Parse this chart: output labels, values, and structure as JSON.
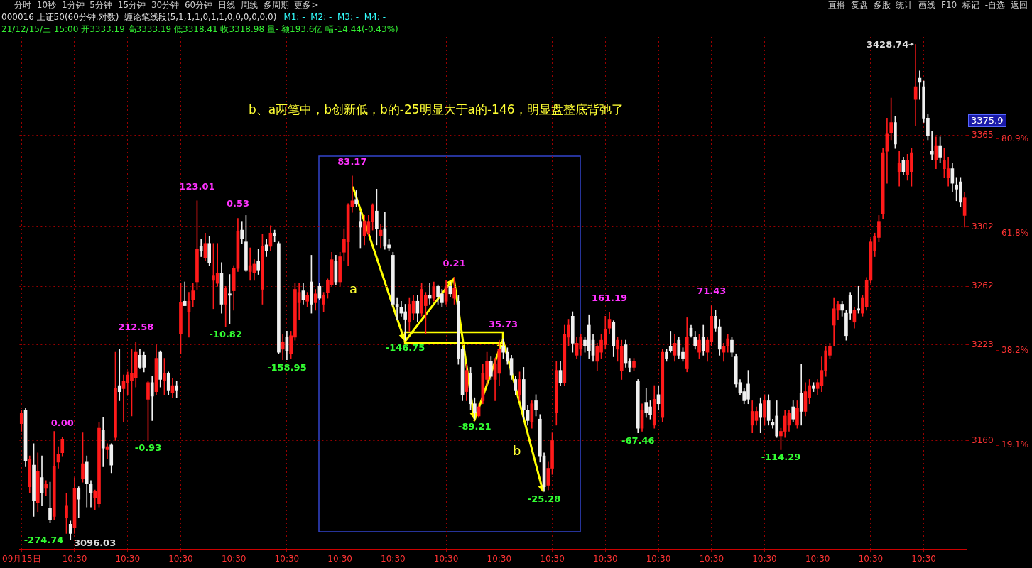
{
  "chart_data": {
    "type": "candlestick",
    "title": "000016 上证50(60分钟.对数)",
    "subtitle": "21/12/15/三 15:00 开3333.19 高3333.19 低3318.41 收3318.98 量- 额193.6亿 幅-14.44(-0.43%)",
    "categories": [
      "09月15日",
      null,
      null,
      null,
      null,
      null,
      null,
      null,
      null,
      null,
      null,
      null,
      null,
      "10:30",
      null,
      null,
      null,
      null,
      null,
      null,
      null,
      null,
      null,
      null,
      null,
      null,
      "10:30",
      null,
      null,
      null,
      null,
      null,
      null,
      null,
      null,
      null,
      null,
      null,
      null,
      "10:30",
      null,
      null,
      null,
      null,
      null,
      null,
      null,
      null,
      null,
      null,
      null,
      null,
      "10:30",
      null,
      null,
      null,
      null,
      null,
      null,
      null,
      null,
      null,
      null,
      null,
      null,
      "10:30",
      null,
      null,
      null,
      null,
      null,
      null,
      null,
      null,
      null,
      null,
      null,
      null,
      "10:30",
      null,
      null,
      null,
      null,
      null,
      null,
      null,
      null,
      null,
      null,
      null,
      null,
      "10:30",
      null,
      null,
      null,
      null,
      null,
      null,
      null,
      null,
      null,
      null,
      null,
      null,
      "10:30",
      null,
      null,
      null,
      null,
      null,
      null,
      null,
      null,
      null,
      null,
      null,
      null,
      "10:30",
      null,
      null,
      null,
      null,
      null,
      null,
      null,
      null,
      null,
      null,
      null,
      null,
      "10:30",
      null,
      null,
      null,
      null,
      null,
      null,
      null,
      null,
      null,
      null,
      null,
      null,
      "10:30",
      null,
      null,
      null,
      null,
      null,
      null,
      null,
      null,
      null,
      null,
      null,
      null,
      "10:30",
      null,
      null,
      null,
      null,
      null,
      null,
      null,
      null,
      null,
      null,
      null,
      null,
      "10:30",
      null,
      null,
      null,
      null,
      null,
      null,
      null,
      null,
      null,
      null,
      null,
      null,
      "10:30",
      null,
      null,
      null,
      null,
      null,
      null,
      null,
      null,
      null,
      null,
      null,
      null,
      "10:30",
      null,
      null,
      null,
      null,
      null,
      null,
      null,
      null,
      null,
      null,
      null,
      null,
      "10:30",
      null,
      null,
      null,
      null,
      null,
      null,
      null,
      null,
      null,
      null,
      null,
      null,
      "10:30",
      null,
      null,
      null,
      null,
      null,
      null,
      null,
      null,
      null,
      null
    ],
    "ohlc": [
      [
        3171,
        3180,
        3166,
        3178
      ],
      [
        3180,
        3181,
        3143,
        3147
      ],
      [
        3130,
        3150,
        3126,
        3148
      ],
      [
        3144,
        3158,
        3111,
        3121
      ],
      [
        3120,
        3152,
        3114,
        3140
      ],
      [
        3136,
        3150,
        3118,
        3126
      ],
      [
        3129,
        3134,
        3124,
        3132
      ],
      [
        3116,
        3133,
        3107,
        3109
      ],
      [
        3111,
        3166,
        3109,
        3143
      ],
      [
        3146,
        3156,
        3142,
        3151
      ],
      [
        3152,
        3162,
        3150,
        3161
      ],
      [
        3110,
        3126,
        3100,
        3118
      ],
      [
        3106,
        3108,
        3096.03,
        3100
      ],
      [
        3104,
        3136,
        3100,
        3129
      ],
      [
        3129,
        3130,
        3110,
        3122
      ],
      [
        3135,
        3165,
        3133,
        3145
      ],
      [
        3146,
        3150,
        3117,
        3132
      ],
      [
        3132,
        3134,
        3117,
        3126
      ],
      [
        3123,
        3128,
        3115,
        3127
      ],
      [
        3119,
        3172,
        3117,
        3168
      ],
      [
        3167,
        3175,
        3143,
        3155
      ],
      [
        3154,
        3158,
        3148,
        3156
      ],
      [
        3157,
        3158,
        3139,
        3144
      ],
      [
        3162,
        3218,
        3160,
        3194
      ],
      [
        3196,
        3220,
        3186,
        3192
      ],
      [
        3194,
        3203,
        3172,
        3199
      ],
      [
        3198,
        3205,
        3190,
        3203
      ],
      [
        3199,
        3220,
        3176,
        3204
      ],
      [
        3201,
        3225,
        3195,
        3218
      ],
      [
        3216,
        3220,
        3207,
        3208
      ],
      [
        3216,
        3218,
        3205,
        3208
      ],
      [
        3187,
        3199,
        3160,
        3198
      ],
      [
        3198,
        3202,
        3173,
        3189
      ],
      [
        3192,
        3223,
        3190,
        3214
      ],
      [
        3218,
        3219,
        3195,
        3200
      ],
      [
        3199,
        3214,
        3190,
        3204
      ],
      [
        3204,
        3205,
        3190,
        3193
      ],
      [
        3191,
        3201,
        3188,
        3196
      ],
      [
        3196,
        3199,
        3188,
        3193
      ],
      [
        3230,
        3264,
        3217,
        3251
      ],
      [
        3252,
        3265,
        3249,
        3249
      ],
      [
        3245,
        3258,
        3228,
        3252
      ],
      [
        3253,
        3264,
        3248,
        3259
      ],
      [
        3265,
        3320,
        3260,
        3287
      ],
      [
        3289,
        3294,
        3282,
        3286
      ],
      [
        3281,
        3298,
        3279,
        3291
      ],
      [
        3291,
        3296,
        3276,
        3278
      ],
      [
        3266,
        3291,
        3247,
        3269
      ],
      [
        3264,
        3291,
        3262,
        3271
      ],
      [
        3271,
        3278,
        3244,
        3250
      ],
      [
        3250,
        3262,
        3235,
        3261
      ],
      [
        3257,
        3270,
        3237,
        3256
      ],
      [
        3259,
        3276,
        3246,
        3274
      ],
      [
        3274,
        3308,
        3272,
        3299
      ],
      [
        3300,
        3306,
        3291,
        3294
      ],
      [
        3292,
        3310,
        3272,
        3273
      ],
      [
        3272,
        3288,
        3266,
        3276
      ],
      [
        3271,
        3280,
        3266,
        3277
      ],
      [
        3279,
        3287,
        3270,
        3273
      ],
      [
        3260,
        3297,
        3250,
        3289
      ],
      [
        3290,
        3294,
        3282,
        3286
      ],
      [
        3289,
        3303,
        3286,
        3298
      ],
      [
        3298,
        3300,
        3292,
        3296
      ],
      [
        3291,
        3292,
        3217,
        3218
      ],
      [
        3220,
        3230,
        3213,
        3225
      ],
      [
        3228,
        3232,
        3213,
        3219
      ],
      [
        3217,
        3232,
        3214,
        3229
      ],
      [
        3228,
        3264,
        3226,
        3260
      ],
      [
        3251,
        3264,
        3240,
        3258
      ],
      [
        3259,
        3264,
        3250,
        3253
      ],
      [
        3252,
        3258,
        3248,
        3256
      ],
      [
        3265,
        3283,
        3244,
        3250
      ],
      [
        3251,
        3260,
        3246,
        3257
      ],
      [
        3262,
        3264,
        3253,
        3254
      ],
      [
        3250,
        3258,
        3245,
        3256
      ],
      [
        3258,
        3267,
        3254,
        3266
      ],
      [
        3263,
        3285,
        3262,
        3280
      ],
      [
        3279,
        3283,
        3263,
        3265
      ],
      [
        3265,
        3285,
        3262,
        3282
      ],
      [
        3285,
        3301,
        3279,
        3294
      ],
      [
        3292,
        3318,
        3276,
        3317
      ],
      [
        3316,
        3337,
        3312,
        3320
      ],
      [
        3321,
        3327,
        3316,
        3318
      ],
      [
        3306,
        3312,
        3288,
        3302
      ],
      [
        3296,
        3310,
        3290,
        3306
      ],
      [
        3298,
        3310,
        3296,
        3306
      ],
      [
        3306,
        3318,
        3300,
        3317
      ],
      [
        3313,
        3328,
        3290,
        3301
      ],
      [
        3296,
        3304,
        3288,
        3300
      ],
      [
        3301,
        3312,
        3287,
        3289
      ],
      [
        3290,
        3294,
        3286,
        3288
      ],
      [
        3283,
        3285,
        3248,
        3250
      ],
      [
        3250,
        3254,
        3240,
        3248
      ],
      [
        3248,
        3252,
        3242,
        3244
      ],
      [
        3245,
        3250,
        3226,
        3240
      ],
      [
        3238,
        3254,
        3232,
        3250
      ],
      [
        3244,
        3256,
        3240,
        3252
      ],
      [
        3252,
        3256,
        3238,
        3244
      ],
      [
        3244,
        3264,
        3242,
        3260
      ],
      [
        3249,
        3258,
        3230,
        3256
      ],
      [
        3256,
        3264,
        3250,
        3254
      ],
      [
        3254,
        3265,
        3252,
        3262
      ],
      [
        3262,
        3263,
        3250,
        3255
      ],
      [
        3257,
        3260,
        3248,
        3251
      ],
      [
        3252,
        3266,
        3250,
        3262
      ],
      [
        3262,
        3265,
        3255,
        3257
      ],
      [
        3254,
        3268,
        3250,
        3261
      ],
      [
        3252,
        3256,
        3210,
        3214
      ],
      [
        3220,
        3222,
        3186,
        3190
      ],
      [
        3192,
        3210,
        3186,
        3206
      ],
      [
        3204,
        3208,
        3180,
        3184
      ],
      [
        3184,
        3188,
        3174,
        3178
      ],
      [
        3176,
        3184,
        3175,
        3182
      ],
      [
        3186,
        3210,
        3184,
        3204
      ],
      [
        3200,
        3218,
        3196,
        3212
      ],
      [
        3212,
        3215,
        3200,
        3202
      ],
      [
        3200,
        3214,
        3186,
        3210
      ],
      [
        3204,
        3226,
        3196,
        3220
      ],
      [
        3222,
        3227,
        3214,
        3218
      ],
      [
        3218,
        3221,
        3210,
        3212
      ],
      [
        3214,
        3216,
        3200,
        3203
      ],
      [
        3200,
        3202,
        3190,
        3193
      ],
      [
        3190,
        3205,
        3186,
        3200
      ],
      [
        3200,
        3208,
        3174,
        3180
      ],
      [
        3180,
        3183,
        3170,
        3173
      ],
      [
        3172,
        3186,
        3168,
        3184
      ],
      [
        3186,
        3190,
        3176,
        3180
      ],
      [
        3174,
        3177,
        3146,
        3150
      ],
      [
        3150,
        3152,
        3127,
        3130
      ],
      [
        3131,
        3146,
        3128,
        3142
      ],
      [
        3142,
        3165,
        3138,
        3160
      ],
      [
        3178,
        3212,
        3170,
        3206
      ],
      [
        3206,
        3212,
        3196,
        3198
      ],
      [
        3198,
        3236,
        3196,
        3230
      ],
      [
        3228,
        3240,
        3222,
        3236
      ],
      [
        3242,
        3245,
        3218,
        3224
      ],
      [
        3216,
        3228,
        3214,
        3224
      ],
      [
        3220,
        3230,
        3216,
        3228
      ],
      [
        3226,
        3228,
        3218,
        3222
      ],
      [
        3236,
        3243,
        3214,
        3219
      ],
      [
        3226,
        3230,
        3212,
        3216
      ],
      [
        3212,
        3224,
        3206,
        3222
      ],
      [
        3218,
        3230,
        3214,
        3226
      ],
      [
        3223,
        3242,
        3220,
        3233
      ],
      [
        3234,
        3244.5,
        3230,
        3240
      ],
      [
        3238,
        3239,
        3215,
        3222
      ],
      [
        3220,
        3228,
        3212,
        3226
      ],
      [
        3206,
        3226,
        3200,
        3222
      ],
      [
        3223,
        3226,
        3208,
        3211
      ],
      [
        3212,
        3214,
        3205,
        3208
      ],
      [
        3208,
        3214,
        3206,
        3212
      ],
      [
        3199,
        3200,
        3165,
        3168
      ],
      [
        3168,
        3184,
        3166,
        3180
      ],
      [
        3185,
        3194,
        3175,
        3178
      ],
      [
        3182,
        3186,
        3174,
        3177
      ],
      [
        3170,
        3196,
        3168,
        3187
      ],
      [
        3190,
        3196,
        3180,
        3184
      ],
      [
        3175,
        3220,
        3172,
        3218
      ],
      [
        3218,
        3220,
        3212,
        3214
      ],
      [
        3222,
        3232,
        3218,
        3219
      ],
      [
        3216,
        3230,
        3212,
        3224
      ],
      [
        3226,
        3228,
        3214,
        3216
      ],
      [
        3218,
        3221,
        3212,
        3214
      ],
      [
        3207,
        3241,
        3205,
        3228
      ],
      [
        3234,
        3236,
        3228,
        3229
      ],
      [
        3228,
        3232,
        3220,
        3222
      ],
      [
        3218,
        3230,
        3214,
        3226
      ],
      [
        3228,
        3236,
        3216,
        3219
      ],
      [
        3218,
        3228,
        3212,
        3226
      ],
      [
        3225,
        3249,
        3222,
        3242
      ],
      [
        3242,
        3246,
        3232,
        3234
      ],
      [
        3235,
        3240,
        3216,
        3220
      ],
      [
        3218,
        3224,
        3212,
        3222
      ],
      [
        3222,
        3230,
        3218,
        3227
      ],
      [
        3226,
        3228,
        3215,
        3218
      ],
      [
        3215,
        3217,
        3195,
        3197
      ],
      [
        3198,
        3200,
        3190,
        3191
      ],
      [
        3192,
        3194,
        3184,
        3186
      ],
      [
        3197,
        3206,
        3184,
        3187
      ],
      [
        3170,
        3186,
        3165,
        3179
      ],
      [
        3173,
        3182,
        3170,
        3179
      ],
      [
        3184,
        3188,
        3165,
        3175
      ],
      [
        3175,
        3190,
        3170,
        3186
      ],
      [
        3186,
        3190,
        3170,
        3173
      ],
      [
        3172,
        3174,
        3168,
        3170
      ],
      [
        3176,
        3186,
        3162,
        3163
      ],
      [
        3163,
        3168,
        3154,
        3166
      ],
      [
        3166,
        3180,
        3162,
        3176
      ],
      [
        3170,
        3180,
        3166,
        3178
      ],
      [
        3182,
        3186,
        3172,
        3174
      ],
      [
        3170,
        3186,
        3168,
        3181
      ],
      [
        3191,
        3210,
        3170,
        3179
      ],
      [
        3179,
        3198,
        3176,
        3192
      ],
      [
        3188,
        3200,
        3184,
        3196
      ],
      [
        3196,
        3198,
        3192,
        3194
      ],
      [
        3194,
        3200,
        3190,
        3198
      ],
      [
        3196,
        3215,
        3192,
        3206
      ],
      [
        3206,
        3222,
        3202,
        3219
      ],
      [
        3216,
        3224,
        3214,
        3222
      ],
      [
        3236,
        3254,
        3222,
        3247
      ],
      [
        3246,
        3252,
        3240,
        3250
      ],
      [
        3250,
        3252,
        3242,
        3246
      ],
      [
        3244,
        3246,
        3226,
        3229
      ],
      [
        3256,
        3258,
        3240,
        3244
      ],
      [
        3238,
        3248,
        3234,
        3246
      ],
      [
        3247,
        3262,
        3244,
        3246
      ],
      [
        3244,
        3256,
        3242,
        3254
      ],
      [
        3248,
        3268,
        3246,
        3266
      ],
      [
        3266,
        3294,
        3264,
        3292
      ],
      [
        3286,
        3298,
        3282,
        3296
      ],
      [
        3295,
        3310,
        3292,
        3306
      ],
      [
        3311,
        3356,
        3308,
        3353
      ],
      [
        3354,
        3377,
        3332,
        3366
      ],
      [
        3367,
        3391,
        3362,
        3374
      ],
      [
        3374,
        3378,
        3356,
        3359
      ],
      [
        3340,
        3354,
        3330,
        3346
      ],
      [
        3348,
        3350,
        3338,
        3340
      ],
      [
        3338,
        3352,
        3334,
        3348
      ],
      [
        3340,
        3356,
        3330,
        3353
      ],
      [
        3390,
        3428.74,
        3372,
        3399
      ],
      [
        3405,
        3410,
        3390,
        3402
      ],
      [
        3399,
        3403,
        3374,
        3377
      ],
      [
        3377,
        3380,
        3362,
        3365
      ],
      [
        3354,
        3368,
        3348,
        3352
      ],
      [
        3348,
        3364,
        3342,
        3358
      ],
      [
        3358,
        3364,
        3346,
        3350
      ],
      [
        3342,
        3356,
        3336,
        3348
      ],
      [
        3336,
        3350,
        3330,
        3342
      ],
      [
        3342,
        3346,
        3326,
        3332
      ],
      [
        3331,
        3336,
        3320,
        3328
      ],
      [
        3333,
        3336,
        3316,
        3319
      ],
      [
        3310,
        3326,
        3302,
        3322
      ]
    ],
    "colors": [
      "#ff1a1a",
      "#f0f0f0",
      "#ff1a1a",
      "#f0f0f0",
      "#ff1a1a",
      "#f0f0f0",
      "#ff1a1a",
      "#f0f0f0",
      "#ff1a1a",
      "#ff1a1a",
      "#ff1a1a",
      "#ff1a1a",
      "#f0f0f0",
      "#ff1a1a",
      "#f0f0f0",
      "#ff1a1a",
      "#f0f0f0",
      "#f0f0f0",
      "#ff1a1a",
      "#ff1a1a",
      "#f0f0f0",
      "#ff1a1a",
      "#f0f0f0",
      "#ff1a1a",
      "#f0f0f0",
      "#ff1a1a",
      "#ff1a1a",
      "#ff1a1a",
      "#ff1a1a",
      "#f0f0f0",
      "#f0f0f0",
      "#ff1a1a",
      "#f0f0f0",
      "#ff1a1a",
      "#f0f0f0",
      "#ff1a1a",
      "#f0f0f0",
      "#ff1a1a",
      "#f0f0f0",
      "#ff1a1a",
      "#f0f0f0",
      "#ff1a1a",
      "#ff1a1a",
      "#ff1a1a",
      "#f0f0f0",
      "#ff1a1a",
      "#f0f0f0",
      "#ff1a1a",
      "#ff1a1a",
      "#f0f0f0",
      "#ff1a1a",
      "#f0f0f0",
      "#ff1a1a",
      "#ff1a1a",
      "#f0f0f0",
      "#f0f0f0",
      "#ff1a1a",
      "#ff1a1a",
      "#f0f0f0",
      "#ff1a1a",
      "#f0f0f0",
      "#ff1a1a",
      "#f0f0f0",
      "#f0f0f0",
      "#ff1a1a",
      "#f0f0f0",
      "#ff1a1a",
      "#ff1a1a",
      "#ff1a1a",
      "#f0f0f0",
      "#ff1a1a",
      "#f0f0f0",
      "#ff1a1a",
      "#f0f0f0",
      "#ff1a1a",
      "#ff1a1a",
      "#ff1a1a",
      "#f0f0f0",
      "#ff1a1a",
      "#ff1a1a",
      "#ff1a1a",
      "#ff1a1a",
      "#f0f0f0",
      "#f0f0f0",
      "#ff1a1a",
      "#ff1a1a",
      "#ff1a1a",
      "#f0f0f0",
      "#ff1a1a",
      "#f0f0f0",
      "#f0f0f0",
      "#f0f0f0",
      "#f0f0f0",
      "#f0f0f0",
      "#f0f0f0",
      "#ff1a1a",
      "#ff1a1a",
      "#f0f0f0",
      "#ff1a1a",
      "#ff1a1a",
      "#f0f0f0",
      "#ff1a1a",
      "#f0f0f0",
      "#f0f0f0",
      "#ff1a1a",
      "#f0f0f0",
      "#ff1a1a",
      "#f0f0f0",
      "#f0f0f0",
      "#ff1a1a",
      "#f0f0f0",
      "#f0f0f0",
      "#ff1a1a",
      "#ff1a1a",
      "#ff1a1a",
      "#f0f0f0",
      "#ff1a1a",
      "#ff1a1a",
      "#f0f0f0",
      "#f0f0f0",
      "#f0f0f0",
      "#f0f0f0",
      "#ff1a1a",
      "#f0f0f0",
      "#f0f0f0",
      "#ff1a1a",
      "#f0f0f0",
      "#f0f0f0",
      "#f0f0f0",
      "#ff1a1a",
      "#ff1a1a",
      "#ff1a1a",
      "#f0f0f0",
      "#ff1a1a",
      "#ff1a1a",
      "#f0f0f0",
      "#ff1a1a",
      "#ff1a1a",
      "#f0f0f0",
      "#f0f0f0",
      "#f0f0f0",
      "#ff1a1a",
      "#ff1a1a",
      "#ff1a1a",
      "#ff1a1a",
      "#f0f0f0",
      "#ff1a1a",
      "#ff1a1a",
      "#f0f0f0",
      "#f0f0f0",
      "#ff1a1a",
      "#f0f0f0",
      "#ff1a1a",
      "#f0f0f0",
      "#f0f0f0",
      "#ff1a1a",
      "#f0f0f0",
      "#ff1a1a",
      "#f0f0f0",
      "#f0f0f0",
      "#ff1a1a",
      "#f0f0f0",
      "#f0f0f0",
      "#ff1a1a",
      "#f0f0f0",
      "#f0f0f0",
      "#ff1a1a",
      "#f0f0f0",
      "#ff1a1a",
      "#ff1a1a",
      "#f0f0f0",
      "#f0f0f0",
      "#ff1a1a",
      "#ff1a1a",
      "#f0f0f0",
      "#f0f0f0",
      "#f0f0f0",
      "#f0f0f0",
      "#f0f0f0",
      "#ff1a1a",
      "#ff1a1a",
      "#f0f0f0",
      "#ff1a1a",
      "#f0f0f0",
      "#f0f0f0",
      "#f0f0f0",
      "#ff1a1a",
      "#ff1a1a",
      "#ff1a1a",
      "#f0f0f0",
      "#ff1a1a",
      "#f0f0f0",
      "#ff1a1a",
      "#ff1a1a",
      "#f0f0f0",
      "#ff1a1a",
      "#ff1a1a",
      "#ff1a1a",
      "#ff1a1a",
      "#ff1a1a",
      "#ff1a1a",
      "#f0f0f0",
      "#f0f0f0",
      "#f0f0f0",
      "#ff1a1a",
      "#f0f0f0",
      "#ff1a1a",
      "#ff1a1a",
      "#ff1a1a",
      "#ff1a1a",
      "#ff1a1a",
      "#ff1a1a",
      "#ff1a1a",
      "#ff1a1a",
      "#f0f0f0",
      "#ff1a1a",
      "#f0f0f0",
      "#ff1a1a",
      "#ff1a1a",
      "#ff1a1a",
      "#f0f0f0",
      "#f0f0f0",
      "#f0f0f0",
      "#f0f0f0",
      "#ff1a1a",
      "#f0f0f0",
      "#ff1a1a",
      "#ff1a1a",
      "#f0f0f0",
      "#f0f0f0",
      "#f0f0f0",
      "#ff1a1a"
    ],
    "value_labels": [
      null,
      null,
      null,
      null,
      null,
      null,
      null,
      null,
      null,
      null,
      "0.00",
      null,
      "-274.74",
      null,
      null,
      null,
      null,
      null,
      null,
      null,
      null,
      null,
      null,
      null,
      null,
      null,
      null,
      null,
      "212.58",
      null,
      null,
      "-0.93",
      null,
      null,
      null,
      null,
      null,
      null,
      null,
      null,
      null,
      null,
      null,
      "123.01",
      null,
      null,
      null,
      null,
      null,
      null,
      "-10.82",
      null,
      null,
      "0.53",
      null,
      null,
      null,
      null,
      null,
      null,
      null,
      null,
      null,
      null,
      null,
      "-158.95",
      null,
      null,
      null,
      null,
      null,
      null,
      null,
      null,
      null,
      null,
      null,
      null,
      null,
      null,
      null,
      "83.17",
      null,
      null,
      null,
      null,
      null,
      null,
      null,
      null,
      null,
      null,
      null,
      null,
      "-146.75",
      null,
      null,
      null,
      null,
      null,
      null,
      null,
      null,
      null,
      null,
      null,
      "0.21",
      null,
      null,
      null,
      null,
      "-89.21",
      null,
      null,
      null,
      null,
      null,
      null,
      "35.73",
      null,
      null,
      null,
      null,
      null,
      null,
      null,
      null,
      null,
      "-25.28",
      null,
      null,
      null,
      null,
      null,
      null,
      null,
      null,
      null,
      null,
      null,
      null,
      null,
      null,
      null,
      "161.19",
      null,
      null,
      null,
      null,
      null,
      null,
      "-67.46",
      null,
      null,
      null,
      null,
      null,
      null,
      null,
      null,
      null,
      null,
      null,
      null,
      null,
      null,
      null,
      null,
      null,
      "71.43",
      null,
      null,
      null,
      null,
      null,
      null,
      null,
      null,
      null,
      null,
      null,
      null,
      null,
      null,
      null,
      null,
      "-114.29",
      null,
      null,
      null,
      null,
      null,
      null,
      null,
      null,
      null,
      null,
      null,
      null,
      null,
      null,
      null,
      null,
      null,
      null,
      null,
      null,
      null,
      null,
      null,
      null,
      null,
      null,
      null,
      null,
      null,
      null,
      null,
      null,
      null,
      null,
      null,
      null,
      null,
      null,
      null,
      null,
      null,
      null,
      null,
      null,
      null
    ],
    "ylim": [
      3090,
      3434
    ],
    "yticks": [
      3160,
      3223,
      3262,
      3302,
      3365
    ],
    "log": true,
    "grid": true,
    "y2lim": [
      -1.9,
      101.5
    ],
    "y2ticks": [
      {
        "value": 19.1,
        "label": "19.1%"
      },
      {
        "value": 38.2,
        "label": "38.2%"
      },
      {
        "value": 61.8,
        "label": "61.8%"
      },
      {
        "value": 80.9,
        "label": "80.9%"
      }
    ],
    "annotations": [
      "分时 10秒 1分钟 5分钟 15分钟 30分钟 60分钟 日线 周线 多周期 更多>",
      "直播 复盘 多股 统计 画线 F10 标记 -自选 返回",
      "缠论笔线段(5,1,1,1,0,1,1,0,0,0,0,0,0)",
      "M1: -  M2: -  M3: -  M4: -",
      "b、a两笔中，b创新低，b的-25明显大于a的-146，明显盘整底背弛了",
      "a",
      "b",
      "3375.9",
      "3428.74",
      "3096.03"
    ]
  }
}
